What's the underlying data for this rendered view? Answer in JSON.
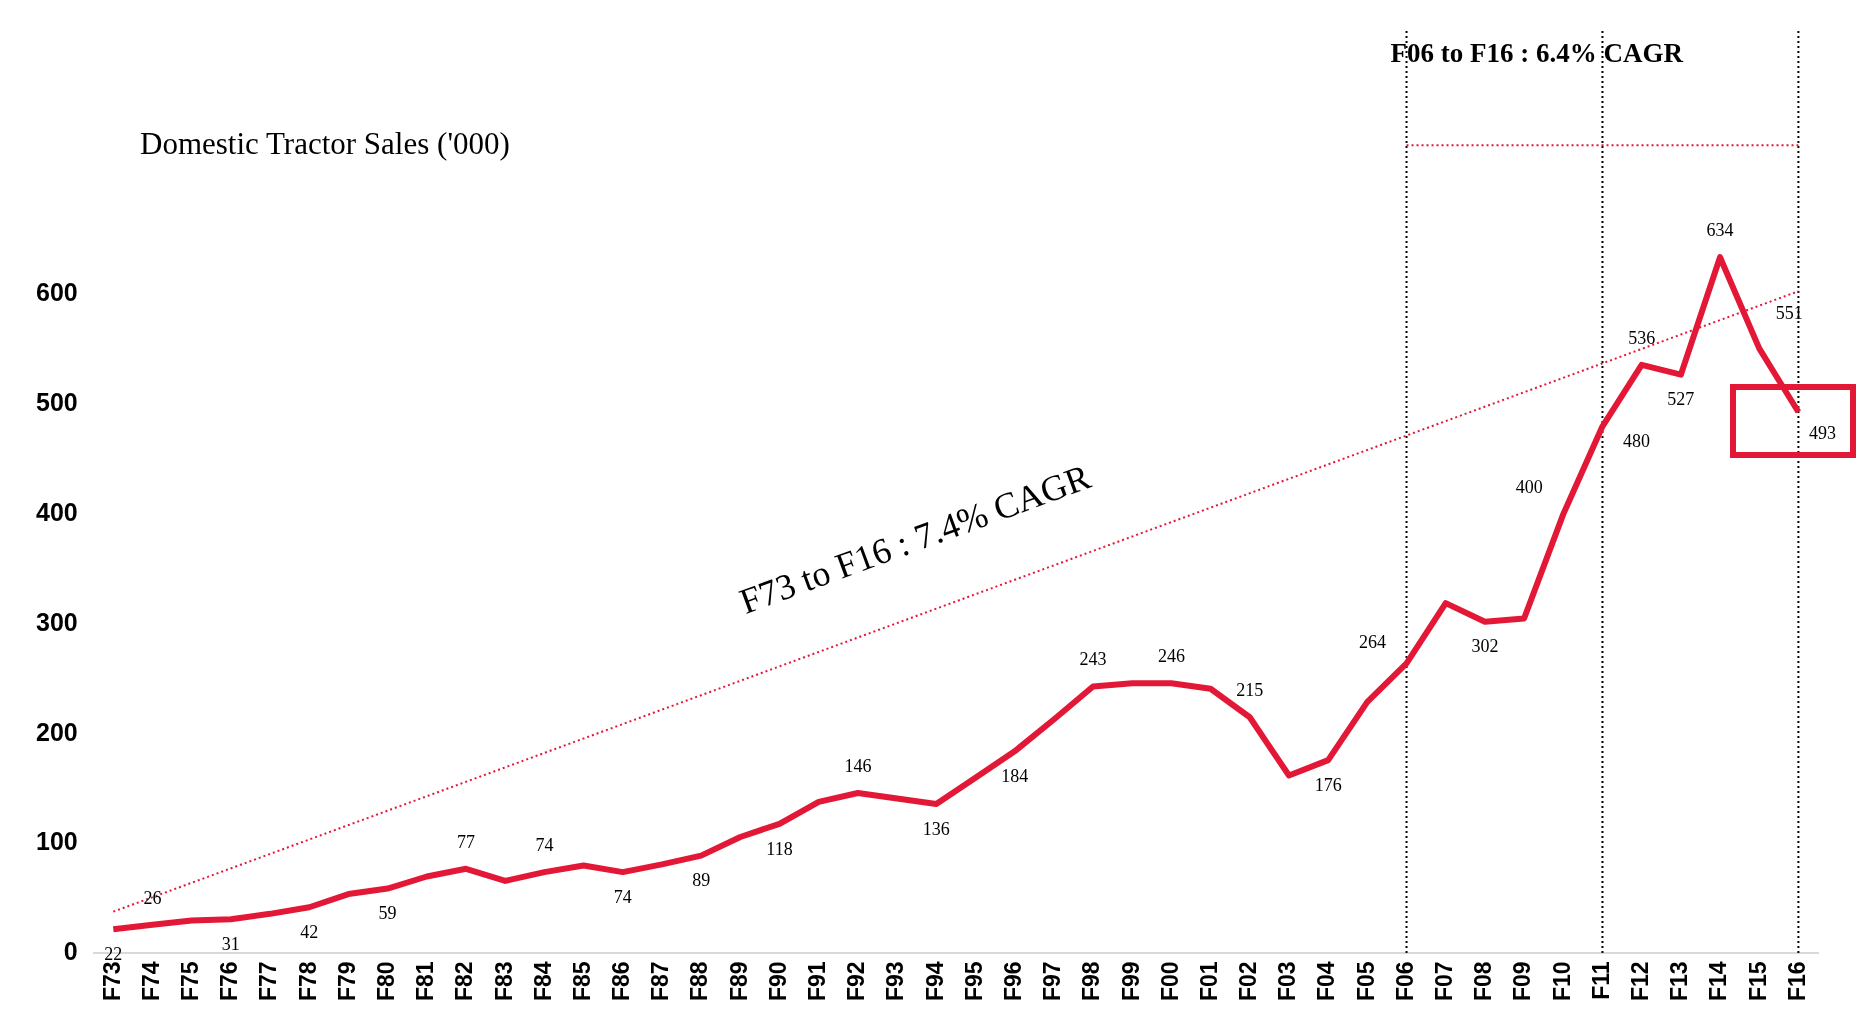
{
  "chart_data": {
    "type": "line",
    "title": "Domestic Tractor Sales ('000)",
    "categories": [
      "F73",
      "F74",
      "F75",
      "F76",
      "F77",
      "F78",
      "F79",
      "F80",
      "F81",
      "F82",
      "F83",
      "F84",
      "F85",
      "F86",
      "F87",
      "F88",
      "F89",
      "F90",
      "F91",
      "F92",
      "F93",
      "F94",
      "F95",
      "F96",
      "F97",
      "F98",
      "F99",
      "F00",
      "F01",
      "F02",
      "F03",
      "F04",
      "F05",
      "F06",
      "F07",
      "F08",
      "F09",
      "F10",
      "F11",
      "F12",
      "F13",
      "F14",
      "F15",
      "F16"
    ],
    "series": [
      {
        "color": "#e31837",
        "values": [
          22,
          26,
          30,
          31,
          36,
          42,
          54,
          59,
          70,
          77,
          66,
          74,
          80,
          74,
          81,
          89,
          106,
          118,
          138,
          146,
          141,
          136,
          160,
          184,
          213,
          243,
          246,
          246,
          241,
          215,
          162,
          176,
          229,
          264,
          319,
          302,
          305,
          400,
          480,
          536,
          527,
          634,
          551,
          493
        ],
        "value_labels": [
          "22",
          "26",
          null,
          "31",
          null,
          "42",
          null,
          "59",
          null,
          "77",
          null,
          "74",
          null,
          "74",
          null,
          "89",
          null,
          "118",
          null,
          "146",
          null,
          "136",
          null,
          "184",
          null,
          "243",
          null,
          "246",
          null,
          "215",
          null,
          "176",
          null,
          "264",
          null,
          "302",
          null,
          "400",
          "480",
          "536",
          "527",
          "634",
          "551",
          "493"
        ]
      },
      {
        "type": "line",
        "color": "#e31837",
        "line_style": "dotted",
        "x": [
          "F73",
          "F16"
        ],
        "values": [
          38,
          603
        ]
      },
      {
        "type": "line",
        "color": "#e31837",
        "line_style": "dotted",
        "x": [
          "F06",
          "F16"
        ],
        "values": [
          736,
          736
        ]
      }
    ],
    "ylim": [
      0,
      840
    ],
    "yticks": [
      0,
      100,
      200,
      300,
      400,
      500,
      600
    ],
    "grid": false,
    "legend": false,
    "marker": "none",
    "ref_lines": [
      {
        "axis": "x",
        "value": "F06",
        "color": "#000000",
        "line_style": "dotted"
      },
      {
        "axis": "x",
        "value": "F11",
        "color": "#000000",
        "line_style": "dotted"
      },
      {
        "axis": "x",
        "value": "F16",
        "color": "#000000",
        "line_style": "dotted"
      }
    ],
    "annotations": [
      "F73 to F16 : 7.4% CAGR",
      "F06 to F16 : 6.4% CAGR"
    ]
  }
}
